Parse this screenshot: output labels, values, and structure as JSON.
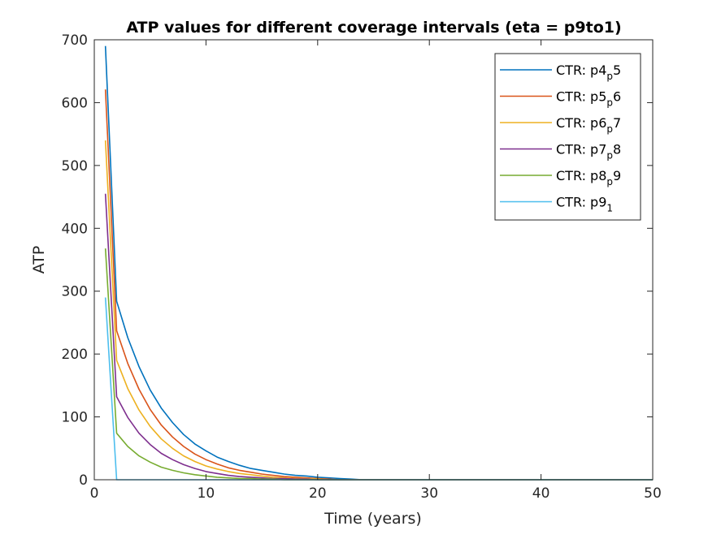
{
  "chart_data": {
    "type": "line",
    "title": "ATP values for different coverage intervals (eta = p9to1)",
    "xlabel": "Time (years)",
    "ylabel": "ATP",
    "xlim": [
      0,
      50
    ],
    "ylim": [
      0,
      700
    ],
    "xticks": [
      0,
      10,
      20,
      30,
      40,
      50
    ],
    "yticks": [
      0,
      100,
      200,
      300,
      400,
      500,
      600,
      700
    ],
    "grid": false,
    "legend_position": "top-right",
    "series": [
      {
        "name": "CTR: p4_p5",
        "legend": {
          "prefix": "CTR: p4",
          "sub": "p",
          "suffix": "5"
        },
        "color": "#0072BD",
        "x": [
          1,
          2,
          3,
          4,
          5,
          6,
          7,
          8,
          9,
          10,
          11,
          12,
          13,
          14,
          15,
          16,
          17,
          18,
          19,
          20,
          21,
          22,
          23,
          24,
          25,
          30,
          40,
          50
        ],
        "y": [
          690,
          284,
          226,
          180,
          143,
          114,
          91,
          72,
          57,
          46,
          36,
          29,
          23,
          18,
          15,
          12,
          9,
          7,
          6,
          4,
          3,
          2,
          1,
          0,
          0,
          0,
          0,
          0
        ]
      },
      {
        "name": "CTR: p5_p6",
        "legend": {
          "prefix": "CTR: p5",
          "sub": "p",
          "suffix": "6"
        },
        "color": "#D95319",
        "x": [
          1,
          2,
          3,
          4,
          5,
          6,
          7,
          8,
          9,
          10,
          11,
          12,
          13,
          14,
          15,
          16,
          17,
          18,
          19,
          20,
          21,
          22,
          23,
          25,
          30,
          40,
          50
        ],
        "y": [
          621,
          237,
          185,
          144,
          112,
          87,
          68,
          53,
          41,
          32,
          25,
          19,
          15,
          12,
          9,
          7,
          5,
          4,
          3,
          2,
          1,
          0,
          0,
          0,
          0,
          0,
          0
        ]
      },
      {
        "name": "CTR: p6_p7",
        "legend": {
          "prefix": "CTR: p6",
          "sub": "p",
          "suffix": "7"
        },
        "color": "#EDB120",
        "x": [
          1,
          2,
          3,
          4,
          5,
          6,
          7,
          8,
          9,
          10,
          11,
          12,
          13,
          14,
          15,
          16,
          17,
          18,
          19,
          20,
          21,
          22,
          25,
          30,
          40,
          50
        ],
        "y": [
          540,
          190,
          145,
          111,
          85,
          65,
          50,
          38,
          29,
          22,
          17,
          13,
          10,
          8,
          6,
          4,
          3,
          2,
          2,
          1,
          0,
          0,
          0,
          0,
          0,
          0
        ]
      },
      {
        "name": "CTR: p7_p8",
        "legend": {
          "prefix": "CTR: p7",
          "sub": "p",
          "suffix": "8"
        },
        "color": "#7E2F8E",
        "x": [
          1,
          2,
          3,
          4,
          5,
          6,
          7,
          8,
          9,
          10,
          11,
          12,
          13,
          14,
          15,
          16,
          17,
          18,
          19,
          20,
          22,
          25,
          30,
          40,
          50
        ],
        "y": [
          455,
          132,
          99,
          74,
          56,
          42,
          32,
          24,
          18,
          13,
          10,
          7,
          5,
          4,
          3,
          2,
          2,
          1,
          1,
          0,
          0,
          0,
          0,
          0,
          0
        ]
      },
      {
        "name": "CTR: p8_p9",
        "legend": {
          "prefix": "CTR: p8",
          "sub": "p",
          "suffix": "9"
        },
        "color": "#77AC30",
        "x": [
          1,
          2,
          3,
          4,
          5,
          6,
          7,
          8,
          9,
          10,
          11,
          12,
          13,
          14,
          15,
          16,
          17,
          18,
          20,
          25,
          30,
          40,
          50
        ],
        "y": [
          368,
          74,
          53,
          38,
          28,
          20,
          15,
          11,
          8,
          6,
          4,
          3,
          2,
          2,
          1,
          1,
          0,
          0,
          0,
          0,
          0,
          0,
          0
        ]
      },
      {
        "name": "CTR: p9_1",
        "legend": {
          "prefix": "CTR: p9",
          "sub": "1",
          "suffix": ""
        },
        "color": "#4DBEEE",
        "x": [
          1,
          2,
          3,
          10,
          20,
          30,
          40,
          50
        ],
        "y": [
          290,
          0,
          0,
          0,
          0,
          0,
          0,
          0
        ]
      }
    ]
  }
}
